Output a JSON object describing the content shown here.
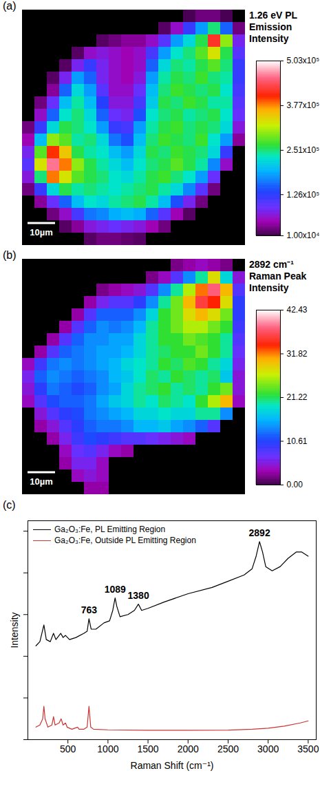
{
  "chart_data": [
    {
      "type": "heatmap",
      "panel_label": "(a)",
      "title": "1.26 eV PL Emission Intensity",
      "scale_bar": "10µm",
      "cells": [
        [
          null,
          null,
          null,
          null,
          null,
          null,
          null,
          null,
          null,
          null,
          null,
          null,
          null,
          15000,
          30000,
          30000,
          15000,
          null
        ],
        [
          null,
          null,
          null,
          null,
          null,
          null,
          null,
          null,
          null,
          null,
          null,
          20000,
          60000,
          120000,
          180000,
          250000,
          150000,
          30000
        ],
        [
          null,
          null,
          null,
          null,
          null,
          null,
          20000,
          30000,
          40000,
          40000,
          60000,
          100000,
          180000,
          220000,
          260000,
          420000,
          300000,
          80000
        ],
        [
          null,
          null,
          null,
          null,
          20000,
          60000,
          70000,
          60000,
          50000,
          60000,
          110000,
          180000,
          230000,
          250000,
          280000,
          330000,
          260000,
          100000
        ],
        [
          null,
          null,
          null,
          20000,
          80000,
          120000,
          80000,
          60000,
          50000,
          60000,
          150000,
          220000,
          250000,
          240000,
          260000,
          280000,
          250000,
          120000
        ],
        [
          null,
          null,
          20000,
          80000,
          180000,
          150000,
          80000,
          60000,
          50000,
          70000,
          180000,
          240000,
          260000,
          250000,
          270000,
          250000,
          240000,
          120000
        ],
        [
          null,
          null,
          40000,
          150000,
          220000,
          180000,
          100000,
          60000,
          60000,
          90000,
          200000,
          250000,
          270000,
          260000,
          250000,
          260000,
          230000,
          110000
        ],
        [
          null,
          30000,
          90000,
          200000,
          240000,
          200000,
          130000,
          70000,
          70000,
          110000,
          210000,
          260000,
          250000,
          270000,
          260000,
          240000,
          240000,
          100000
        ],
        [
          null,
          60000,
          150000,
          230000,
          250000,
          220000,
          150000,
          90000,
          80000,
          140000,
          230000,
          250000,
          260000,
          240000,
          250000,
          260000,
          230000,
          90000
        ],
        [
          30000,
          120000,
          220000,
          260000,
          250000,
          230000,
          180000,
          120000,
          110000,
          180000,
          240000,
          260000,
          270000,
          250000,
          260000,
          250000,
          220000,
          70000
        ],
        [
          50000,
          200000,
          300000,
          280000,
          240000,
          250000,
          220000,
          160000,
          140000,
          200000,
          250000,
          270000,
          260000,
          250000,
          270000,
          230000,
          180000,
          40000
        ],
        [
          80000,
          280000,
          400000,
          350000,
          260000,
          240000,
          230000,
          200000,
          180000,
          220000,
          260000,
          250000,
          270000,
          260000,
          250000,
          220000,
          120000,
          null
        ],
        [
          100000,
          330000,
          460000,
          380000,
          300000,
          260000,
          240000,
          220000,
          200000,
          230000,
          250000,
          260000,
          280000,
          260000,
          240000,
          170000,
          60000,
          null
        ],
        [
          70000,
          250000,
          380000,
          330000,
          280000,
          260000,
          250000,
          230000,
          220000,
          240000,
          260000,
          270000,
          250000,
          230000,
          180000,
          90000,
          null,
          null
        ],
        [
          30000,
          120000,
          220000,
          260000,
          240000,
          250000,
          240000,
          230000,
          240000,
          250000,
          260000,
          240000,
          220000,
          170000,
          100000,
          30000,
          null,
          null
        ],
        [
          null,
          40000,
          90000,
          150000,
          200000,
          230000,
          220000,
          240000,
          250000,
          260000,
          240000,
          200000,
          140000,
          80000,
          30000,
          null,
          null,
          null
        ],
        [
          null,
          null,
          30000,
          60000,
          110000,
          160000,
          170000,
          190000,
          200000,
          190000,
          150000,
          100000,
          50000,
          20000,
          null,
          null,
          null,
          null
        ],
        [
          null,
          null,
          null,
          20000,
          40000,
          70000,
          80000,
          90000,
          80000,
          70000,
          50000,
          30000,
          null,
          null,
          null,
          null,
          null,
          null
        ],
        [
          null,
          null,
          null,
          null,
          null,
          20000,
          30000,
          30000,
          25000,
          20000,
          null,
          null,
          null,
          null,
          null,
          null,
          null,
          null
        ]
      ],
      "colorbar": {
        "range": [
          10000,
          503000
        ],
        "ticks": [
          {
            "value": 10000,
            "label": "1.00x10⁴"
          },
          {
            "value": 126000,
            "label": "1.26x10⁵"
          },
          {
            "value": 251000,
            "label": "2.51x10⁵"
          },
          {
            "value": 377000,
            "label": "3.77x10⁵"
          },
          {
            "value": 503000,
            "label": "5.03x10⁵"
          }
        ]
      }
    },
    {
      "type": "heatmap",
      "panel_label": "(b)",
      "title": "2892 cm⁻¹ Raman Peak Intensity",
      "scale_bar": "10µm",
      "cells": [
        [
          null,
          null,
          null,
          null,
          null,
          null,
          null,
          null,
          null,
          null,
          null,
          null,
          2,
          3,
          4,
          3,
          2,
          null
        ],
        [
          null,
          null,
          null,
          null,
          null,
          null,
          null,
          null,
          null,
          null,
          2,
          4,
          8,
          14,
          20,
          28,
          18,
          5
        ],
        [
          null,
          null,
          null,
          null,
          null,
          null,
          2,
          3,
          4,
          5,
          8,
          14,
          20,
          26,
          32,
          38,
          30,
          8
        ],
        [
          null,
          null,
          null,
          null,
          null,
          3,
          6,
          8,
          8,
          10,
          14,
          20,
          24,
          30,
          36,
          34,
          28,
          10
        ],
        [
          null,
          null,
          null,
          null,
          3,
          8,
          12,
          12,
          12,
          14,
          18,
          22,
          24,
          28,
          30,
          28,
          24,
          10
        ],
        [
          null,
          null,
          null,
          3,
          8,
          12,
          14,
          13,
          14,
          16,
          20,
          22,
          24,
          26,
          26,
          24,
          22,
          9
        ],
        [
          null,
          null,
          3,
          8,
          12,
          14,
          14,
          15,
          15,
          18,
          20,
          22,
          22,
          24,
          23,
          22,
          20,
          8
        ],
        [
          null,
          3,
          8,
          12,
          13,
          14,
          15,
          15,
          16,
          18,
          20,
          21,
          22,
          22,
          24,
          22,
          20,
          7
        ],
        [
          4,
          9,
          13,
          14,
          13,
          14,
          15,
          16,
          18,
          19,
          20,
          22,
          21,
          23,
          22,
          20,
          18,
          6
        ],
        [
          6,
          12,
          14,
          13,
          12,
          13,
          14,
          16,
          17,
          19,
          21,
          20,
          22,
          21,
          20,
          21,
          17,
          5
        ],
        [
          5,
          10,
          13,
          12,
          11,
          12,
          14,
          15,
          18,
          20,
          21,
          22,
          20,
          21,
          20,
          22,
          24,
          5
        ],
        [
          4,
          8,
          11,
          12,
          12,
          13,
          15,
          17,
          18,
          20,
          19,
          21,
          20,
          19,
          22,
          26,
          30,
          4
        ],
        [
          null,
          5,
          8,
          10,
          11,
          13,
          14,
          15,
          16,
          18,
          18,
          19,
          18,
          18,
          20,
          20,
          14,
          null
        ],
        [
          null,
          3,
          5,
          8,
          10,
          12,
          13,
          13,
          14,
          16,
          16,
          17,
          15,
          14,
          12,
          8,
          null,
          null
        ],
        [
          null,
          null,
          3,
          6,
          9,
          11,
          10,
          9,
          8,
          8,
          7,
          6,
          5,
          4,
          null,
          null,
          null,
          null
        ],
        [
          null,
          null,
          null,
          4,
          7,
          8,
          6,
          4,
          3,
          null,
          null,
          null,
          null,
          null,
          null,
          null,
          null,
          null
        ],
        [
          null,
          null,
          null,
          3,
          6,
          6,
          4,
          null,
          null,
          null,
          null,
          null,
          null,
          null,
          null,
          null,
          null,
          null
        ],
        [
          null,
          null,
          null,
          null,
          4,
          5,
          4,
          null,
          null,
          null,
          null,
          null,
          null,
          null,
          null,
          null,
          null,
          null
        ],
        [
          null,
          null,
          null,
          null,
          null,
          3,
          3,
          null,
          null,
          null,
          null,
          null,
          null,
          null,
          null,
          null,
          null,
          null
        ]
      ],
      "colorbar": {
        "range": [
          0,
          42.43
        ],
        "ticks": [
          {
            "value": 0,
            "label": "0.00"
          },
          10.61,
          21.22,
          31.82,
          42.43
        ]
      }
    },
    {
      "type": "line",
      "panel_label": "(c)",
      "x_label": "Raman Shift (cm⁻¹)",
      "y_label": "Intensity",
      "xlim": [
        0,
        3600
      ],
      "xticks": [
        500,
        1000,
        1500,
        2000,
        2500,
        3000,
        3500
      ],
      "ylim": [
        0,
        105
      ],
      "yticks": [
        0,
        20,
        40,
        60,
        80,
        100
      ],
      "tick_labels": "x",
      "legend": "top-left",
      "series": [
        {
          "name": "Ga₂O₃:Fe, PL Emitting Region",
          "color": "#000000",
          "x": [
            100,
            150,
            200,
            230,
            280,
            320,
            350,
            410,
            440,
            470,
            520,
            600,
            700,
            740,
            763,
            790,
            850,
            950,
            1020,
            1060,
            1089,
            1110,
            1150,
            1250,
            1330,
            1380,
            1420,
            1500,
            1700,
            2000,
            2300,
            2500,
            2700,
            2800,
            2850,
            2892,
            2930,
            2970,
            3050,
            3150,
            3250,
            3350,
            3420,
            3500
          ],
          "values": [
            45,
            47,
            55,
            48,
            47,
            51,
            48,
            51,
            49,
            50,
            48,
            49,
            51,
            52,
            58,
            53,
            53,
            56,
            57,
            62,
            68,
            64,
            59,
            60,
            62,
            65,
            62,
            63,
            66,
            70,
            73,
            76,
            79,
            82,
            88,
            95,
            90,
            83,
            81,
            83,
            87,
            90,
            90,
            88
          ]
        },
        {
          "name": "Ga₂O₃:Fe, Outside PL Emitting Region",
          "color": "#cc3333",
          "x": [
            100,
            150,
            185,
            200,
            215,
            250,
            300,
            320,
            340,
            390,
            415,
            440,
            470,
            490,
            550,
            620,
            640,
            700,
            740,
            763,
            785,
            820,
            1000,
            1500,
            2000,
            2500,
            2800,
            3000,
            3200,
            3400,
            3500
          ],
          "values": [
            6,
            7,
            10,
            16,
            10,
            6,
            7,
            11,
            7,
            8,
            10,
            7,
            8,
            6,
            5,
            6,
            5,
            5,
            6,
            16,
            6,
            5,
            4.7,
            4.5,
            4.5,
            4.6,
            5,
            5.5,
            6.5,
            8,
            9
          ]
        }
      ],
      "annotations": [
        {
          "text": "763",
          "x": 763,
          "y": 58
        },
        {
          "text": "1089",
          "x": 1089,
          "y": 68
        },
        {
          "text": "1380",
          "x": 1380,
          "y": 65
        },
        {
          "text": "2892",
          "x": 2892,
          "y": 95
        }
      ]
    }
  ]
}
